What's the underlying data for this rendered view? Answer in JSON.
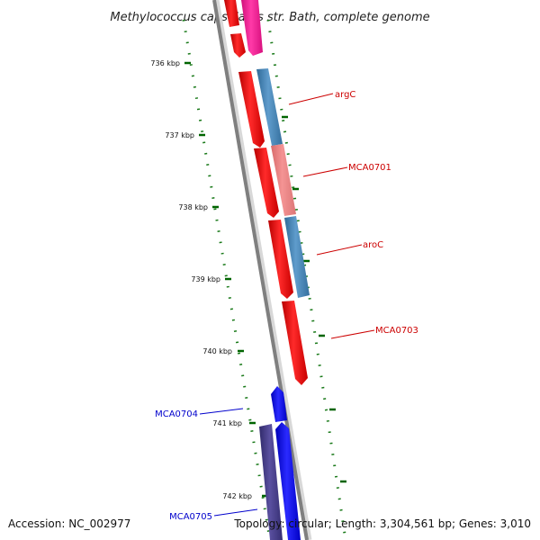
{
  "title": "Methylococcus capsulatus str. Bath, complete genome",
  "accession": "Accession: NC_002977",
  "summary": "Topology: circular; Length: 3,304,561 bp; Genes: 3,010",
  "colors": {
    "forward_cds": "#ff0000",
    "forward_cds_light": "#f08080",
    "forward_other": "#ff1493",
    "reverse_cds": "#0000ff",
    "reverse_cds_dark": "#483d8b",
    "blue_feature": "#4682b4",
    "backbone": "#808080",
    "tick": "#006400",
    "label_forward": "#cc0000",
    "label_reverse": "#0000cc"
  },
  "scale": {
    "unit": "kbp",
    "ticks": [
      {
        "kbp": 736,
        "label": "736 kbp"
      },
      {
        "kbp": 737,
        "label": "737 kbp"
      },
      {
        "kbp": 738,
        "label": "738 kbp"
      },
      {
        "kbp": 739,
        "label": "739 kbp"
      },
      {
        "kbp": 740,
        "label": "740 kbp"
      },
      {
        "kbp": 741,
        "label": "741 kbp"
      },
      {
        "kbp": 742,
        "label": "742 kbp"
      }
    ]
  },
  "genes": [
    {
      "name": "argC",
      "strand": "forward"
    },
    {
      "name": "MCA0701",
      "strand": "forward"
    },
    {
      "name": "aroC",
      "strand": "forward"
    },
    {
      "name": "MCA0703",
      "strand": "forward"
    },
    {
      "name": "MCA0704",
      "strand": "reverse"
    },
    {
      "name": "MCA0705",
      "strand": "reverse"
    }
  ]
}
